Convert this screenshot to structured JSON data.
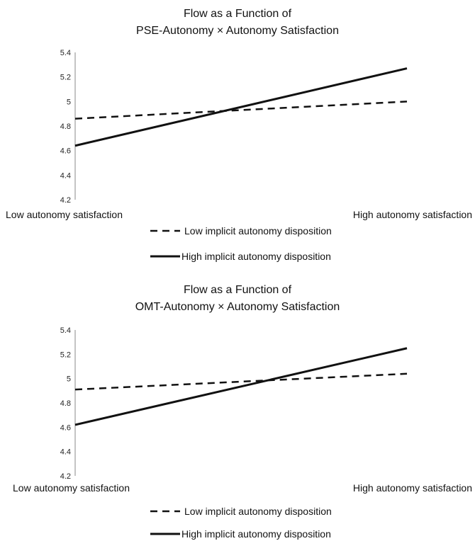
{
  "chart_data": [
    {
      "type": "line",
      "title": [
        "Flow as a Function of",
        "PSE-Autonomy × Autonomy Satisfaction"
      ],
      "categories": [
        "Low autonomy satisfaction",
        "High autonomy satisfaction"
      ],
      "yticks": [
        "5.4",
        "5.2",
        "5",
        "4.8",
        "4.6",
        "4.4",
        "4.2"
      ],
      "ylim": [
        4.2,
        5.4
      ],
      "grid": false,
      "legend_position": "bottom",
      "series": [
        {
          "name": "Low implicit autonomy disposition",
          "values": [
            4.86,
            5.0
          ],
          "style": "dashed",
          "color": "#111111"
        },
        {
          "name": "High implicit autonomy disposition",
          "values": [
            4.64,
            5.27
          ],
          "style": "solid",
          "color": "#111111"
        }
      ]
    },
    {
      "type": "line",
      "title": [
        "Flow as a Function of",
        "OMT-Autonomy × Autonomy Satisfaction"
      ],
      "categories": [
        "Low autonomy satisfaction",
        "High autonomy satisfaction"
      ],
      "yticks": [
        "5.4",
        "5.2",
        "5",
        "4.8",
        "4.6",
        "4.4",
        "4.2"
      ],
      "ylim": [
        4.2,
        5.4
      ],
      "grid": false,
      "legend_position": "bottom",
      "series": [
        {
          "name": "Low implicit autonomy disposition",
          "values": [
            4.91,
            5.04
          ],
          "style": "dashed",
          "color": "#111111"
        },
        {
          "name": "High implicit autonomy disposition",
          "values": [
            4.62,
            5.25
          ],
          "style": "solid",
          "color": "#111111"
        }
      ]
    }
  ]
}
